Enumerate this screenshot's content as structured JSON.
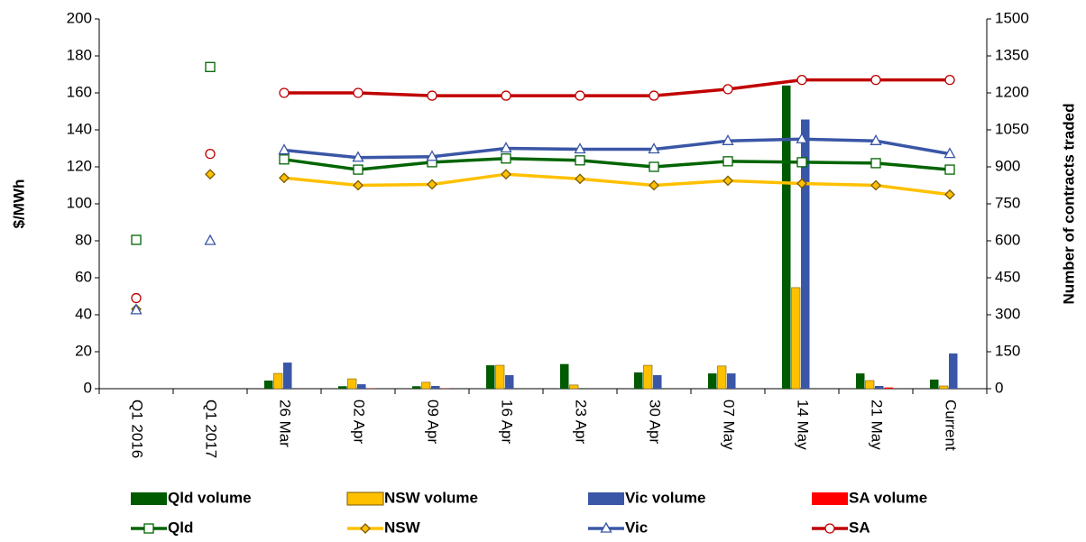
{
  "chart_data": {
    "type": "combo",
    "categories": [
      "Q1 2016",
      "Q1 2017",
      "26 Mar",
      "02 Apr",
      "09 Apr",
      "16 Apr",
      "23 Apr",
      "30 Apr",
      "07 May",
      "14 May",
      "21 May",
      "Current"
    ],
    "y_label": "$/MWh",
    "y2_label": "Number of contracts traded",
    "ylim": [
      0,
      200
    ],
    "yticks": [
      0,
      20,
      40,
      60,
      80,
      100,
      120,
      140,
      160,
      180,
      200
    ],
    "y2lim": [
      0,
      1500
    ],
    "y2ticks": [
      0,
      150,
      300,
      450,
      600,
      750,
      900,
      1050,
      1200,
      1350,
      1500
    ],
    "line_start": 2,
    "series": [
      {
        "name": "Qld volume",
        "type": "bar",
        "axis": "y2",
        "color": "#005a00",
        "values": [
          null,
          null,
          33,
          10,
          10,
          95,
          100,
          66,
          62,
          1230,
          62,
          37
        ]
      },
      {
        "name": "NSW volume",
        "type": "bar",
        "axis": "y2",
        "color": "#ffc000",
        "values": [
          null,
          null,
          62,
          40,
          26,
          95,
          15,
          95,
          92,
          410,
          33,
          11
        ]
      },
      {
        "name": "Vic volume",
        "type": "bar",
        "axis": "y2",
        "color": "#3a56a6",
        "values": [
          null,
          null,
          106,
          18,
          11,
          55,
          0,
          55,
          62,
          1092,
          11,
          143
        ]
      },
      {
        "name": "SA volume",
        "type": "bar",
        "axis": "y2",
        "color": "#ff0000",
        "values": [
          null,
          null,
          0,
          1,
          1,
          0,
          0,
          0,
          0,
          0,
          5,
          0
        ]
      },
      {
        "name": "Qld",
        "type": "line",
        "marker": "square",
        "color": "#006400",
        "values": [
          80.5,
          174,
          124,
          118.5,
          122.5,
          124.5,
          123.5,
          120,
          123,
          122.5,
          122,
          118.5
        ]
      },
      {
        "name": "NSW",
        "type": "line",
        "marker": "diamond",
        "color": "#ffc000",
        "values": [
          43,
          116,
          114,
          110,
          110.5,
          116,
          113.5,
          110,
          112.5,
          111,
          110,
          105
        ]
      },
      {
        "name": "Vic",
        "type": "line",
        "marker": "triangle",
        "color": "#3a56a6",
        "values": [
          42.5,
          80,
          129,
          125,
          125.5,
          130,
          129.5,
          129.5,
          134,
          135,
          134,
          127
        ]
      },
      {
        "name": "SA",
        "type": "line",
        "marker": "circle",
        "color": "#c00000",
        "values": [
          49,
          127,
          160,
          160,
          158.5,
          158.5,
          158.5,
          158.5,
          162,
          167,
          167,
          167
        ]
      }
    ]
  }
}
